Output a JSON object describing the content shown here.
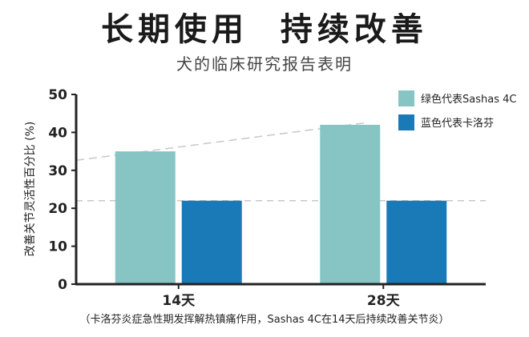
{
  "title": "长期使用  持续改善",
  "subtitle": "犬的临床研究报告表明",
  "footnote": "（卡洛芬炎症急性期发挥解热镇痛作用，Sashas 4C在14天后持续改善关节炎）",
  "chart_data": {
    "type": "bar",
    "categories": [
      "14天",
      "28天"
    ],
    "series": [
      {
        "name": "绿色代表Sashas 4C",
        "values": [
          35,
          42
        ],
        "color": "#86c5c4"
      },
      {
        "name": "蓝色代表卡洛芬",
        "values": [
          22,
          22
        ],
        "color": "#1a7ab8"
      }
    ],
    "ylabel": "改善关节灵活性百分比 (%)",
    "ylim": [
      0,
      50
    ],
    "yticks": [
      0,
      10,
      20,
      30,
      40,
      50
    ],
    "legend_position": "top-right",
    "grid": false
  }
}
